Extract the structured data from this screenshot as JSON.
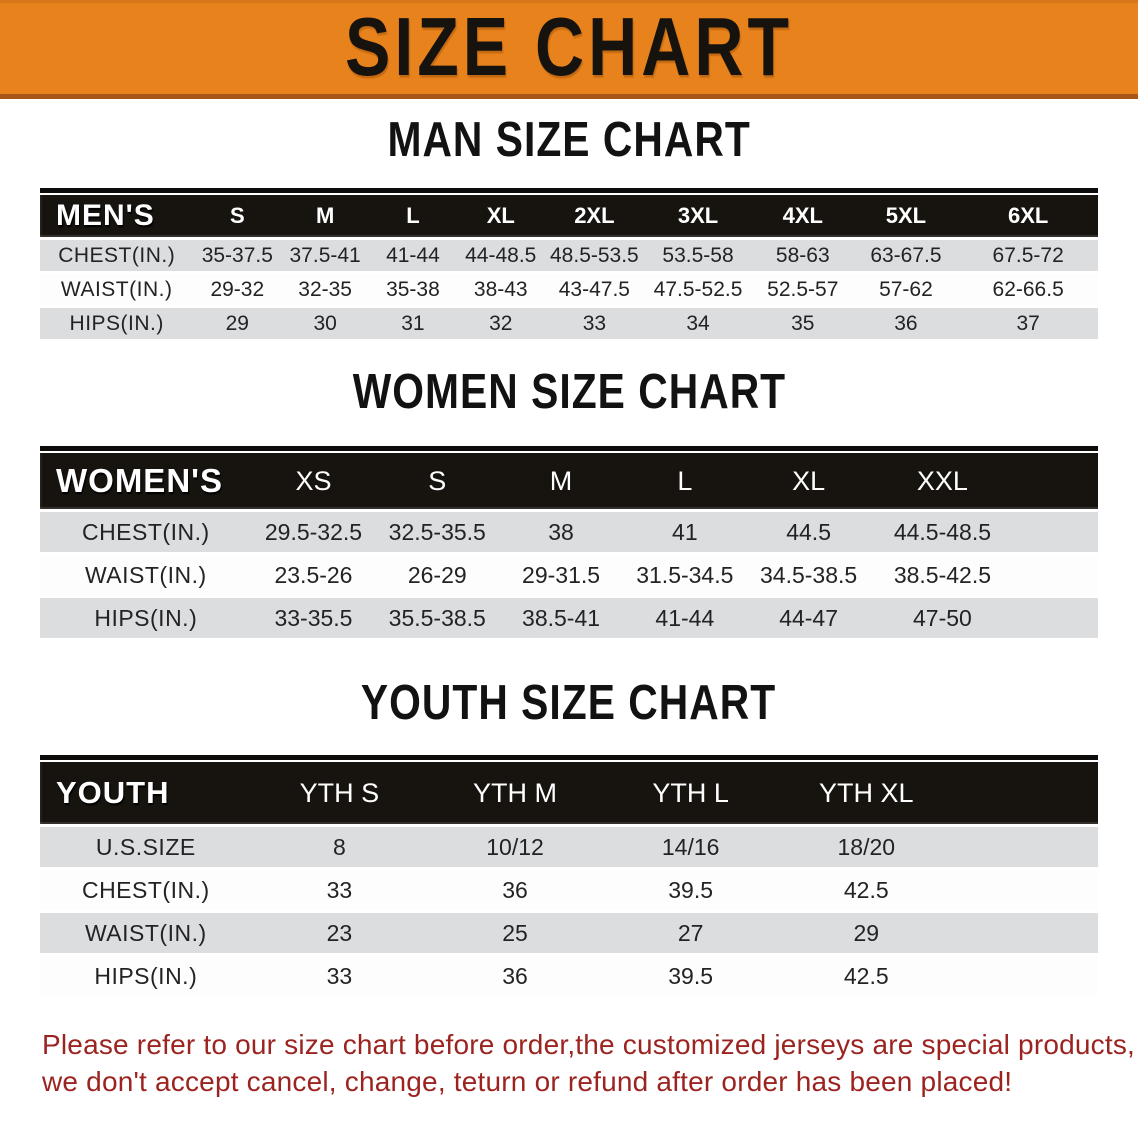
{
  "banner": {
    "title": "SIZE CHART"
  },
  "colors": {
    "banner_orange": "#E8821C",
    "banner_edge": "#A85617",
    "table_header_black": "#17130F",
    "row_gray": "#DCDDDE",
    "row_white": "#FDFDFD",
    "note_red": "#9C2420"
  },
  "tables": {
    "men": {
      "heading": "MAN SIZE CHART",
      "corner_label": "MEN'S",
      "size_headers": [
        "S",
        "M",
        "L",
        "XL",
        "2XL",
        "3XL",
        "4XL",
        "5XL",
        "6XL"
      ],
      "rows": [
        {
          "label": "CHEST(IN.)",
          "values": [
            "35-37.5",
            "37.5-41",
            "41-44",
            "44-48.5",
            "48.5-53.5",
            "53.5-58",
            "58-63",
            "63-67.5",
            "67.5-72"
          ]
        },
        {
          "label": "WAIST(IN.)",
          "values": [
            "29-32",
            "32-35",
            "35-38",
            "38-43",
            "43-47.5",
            "47.5-52.5",
            "52.5-57",
            "57-62",
            "62-66.5"
          ]
        },
        {
          "label": "HIPS(IN.)",
          "values": [
            "29",
            "30",
            "31",
            "32",
            "33",
            "34",
            "35",
            "36",
            "37"
          ]
        }
      ]
    },
    "women": {
      "heading": "WOMEN SIZE CHART",
      "corner_label": "WOMEN'S",
      "size_headers": [
        "XS",
        "S",
        "M",
        "L",
        "XL",
        "XXL"
      ],
      "rows": [
        {
          "label": "CHEST(IN.)",
          "values": [
            "29.5-32.5",
            "32.5-35.5",
            "38",
            "41",
            "44.5",
            "44.5-48.5"
          ]
        },
        {
          "label": "WAIST(IN.)",
          "values": [
            "23.5-26",
            "26-29",
            "29-31.5",
            "31.5-34.5",
            "34.5-38.5",
            "38.5-42.5"
          ]
        },
        {
          "label": "HIPS(IN.)",
          "values": [
            "33-35.5",
            "35.5-38.5",
            "38.5-41",
            "41-44",
            "44-47",
            "47-50"
          ]
        }
      ]
    },
    "youth": {
      "heading": "YOUTH SIZE CHART",
      "corner_label": "YOUTH",
      "size_headers": [
        "YTH S",
        "YTH M",
        "YTH L",
        "YTH XL"
      ],
      "rows": [
        {
          "label": "U.S.SIZE",
          "values": [
            "8",
            "10/12",
            "14/16",
            "18/20"
          ]
        },
        {
          "label": "CHEST(IN.)",
          "values": [
            "33",
            "36",
            "39.5",
            "42.5"
          ]
        },
        {
          "label": "WAIST(IN.)",
          "values": [
            "23",
            "25",
            "27",
            "29"
          ]
        },
        {
          "label": "HIPS(IN.)",
          "values": [
            "33",
            "36",
            "39.5",
            "42.5"
          ]
        }
      ]
    }
  },
  "note": {
    "line1": "Please refer to our size chart before order,the customized jerseys are special products,",
    "line2": "we don't accept cancel, change, teturn or refund after order has been placed!"
  }
}
